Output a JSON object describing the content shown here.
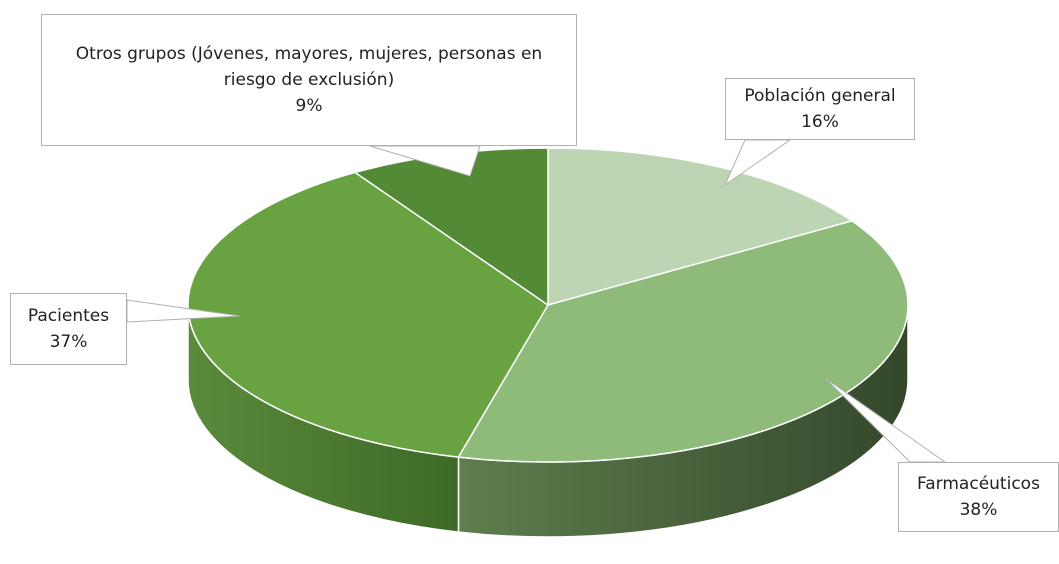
{
  "chart_data": {
    "type": "pie3d",
    "categories": [
      "Población general",
      "Farmacéuticos",
      "Pacientes",
      "Otros grupos (Jóvenes, mayores, mujeres, personas en riesgo de exclusión)"
    ],
    "values": [
      16,
      38,
      37,
      9
    ],
    "value_labels": [
      "16%",
      "38%",
      "37%",
      "9%"
    ],
    "colors": [
      "#bdd5b2",
      "#8eba7a",
      "#68a241",
      "#528a36"
    ]
  }
}
